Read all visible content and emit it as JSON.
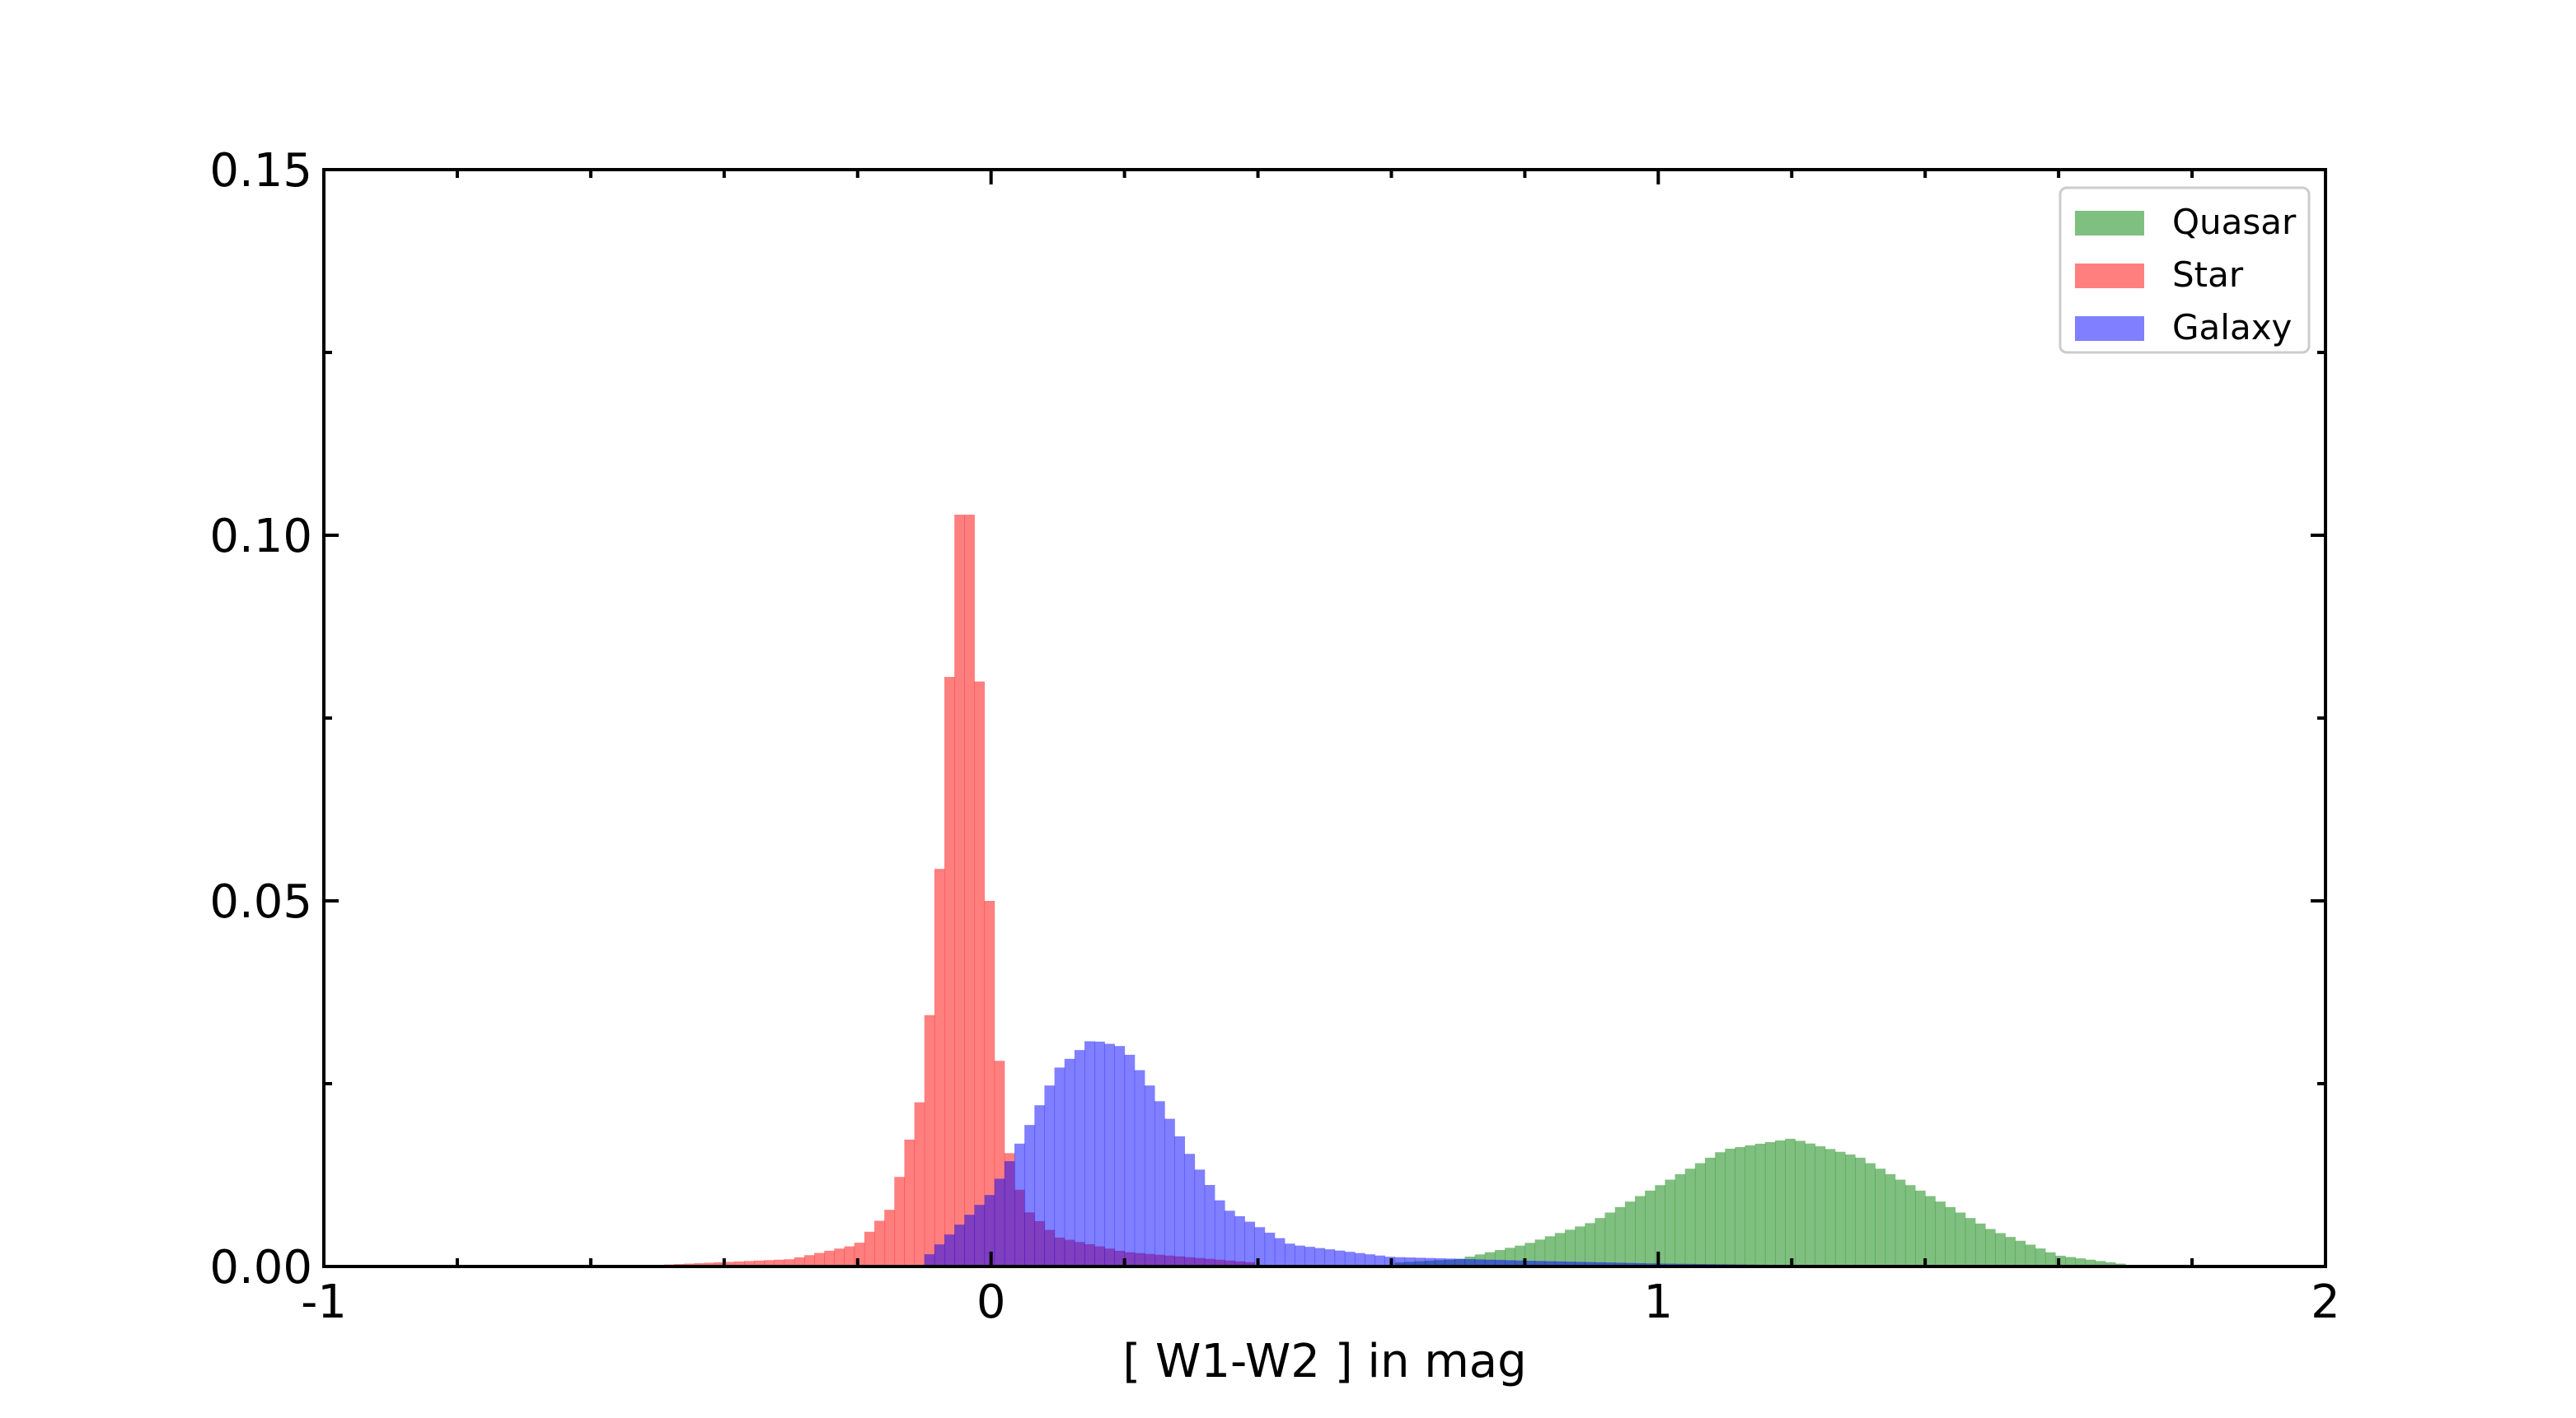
{
  "chart_data": {
    "type": "histogram",
    "xlabel": "[ W1-W2 ] in mag",
    "ylabel": "",
    "xlim": [
      -1,
      2
    ],
    "ylim": [
      0,
      0.15
    ],
    "x_ticks": [
      -1,
      0,
      1,
      2
    ],
    "x_tick_labels": [
      "-1",
      "0",
      "1",
      "2"
    ],
    "y_ticks": [
      0,
      0.05,
      0.1,
      0.15
    ],
    "y_tick_labels": [
      "0.00",
      "0.05",
      "0.10",
      "0.15"
    ],
    "legend": {
      "position": "top-right",
      "entries": [
        "Quasar",
        "Star",
        "Galaxy"
      ]
    },
    "grid": false,
    "series": [
      {
        "name": "Quasar",
        "color": "#008000",
        "opacity": 0.5,
        "peaks": [
          [
            0.6,
            0.0005
          ],
          [
            0.7,
            0.001
          ],
          [
            0.8,
            0.003
          ],
          [
            0.9,
            0.006
          ],
          [
            1.0,
            0.011
          ],
          [
            1.1,
            0.016
          ],
          [
            1.2,
            0.0175
          ],
          [
            1.3,
            0.015
          ],
          [
            1.4,
            0.01
          ],
          [
            1.5,
            0.005
          ],
          [
            1.6,
            0.0015
          ],
          [
            1.7,
            0.0003
          ]
        ]
      },
      {
        "name": "Star",
        "color": "#ff0000",
        "opacity": 0.5,
        "peaks": [
          [
            -0.5,
            0.0002
          ],
          [
            -0.3,
            0.001
          ],
          [
            -0.2,
            0.003
          ],
          [
            -0.15,
            0.008
          ],
          [
            -0.1,
            0.025
          ],
          [
            -0.08,
            0.05
          ],
          [
            -0.06,
            0.085
          ],
          [
            -0.04,
            0.1135
          ],
          [
            -0.02,
            0.085
          ],
          [
            0.0,
            0.045
          ],
          [
            0.02,
            0.018
          ],
          [
            0.05,
            0.008
          ],
          [
            0.1,
            0.004
          ],
          [
            0.2,
            0.002
          ],
          [
            0.4,
            0.0005
          ]
        ]
      },
      {
        "name": "Galaxy",
        "color": "#0000ff",
        "opacity": 0.5,
        "peaks": [
          [
            -0.1,
            0.001
          ],
          [
            0.0,
            0.01
          ],
          [
            0.05,
            0.018
          ],
          [
            0.1,
            0.027
          ],
          [
            0.15,
            0.031
          ],
          [
            0.2,
            0.03
          ],
          [
            0.25,
            0.023
          ],
          [
            0.3,
            0.015
          ],
          [
            0.35,
            0.008
          ],
          [
            0.45,
            0.003
          ],
          [
            0.6,
            0.0013
          ],
          [
            0.8,
            0.0008
          ],
          [
            1.0,
            0.0004
          ],
          [
            1.2,
            0.0002
          ]
        ]
      }
    ]
  }
}
